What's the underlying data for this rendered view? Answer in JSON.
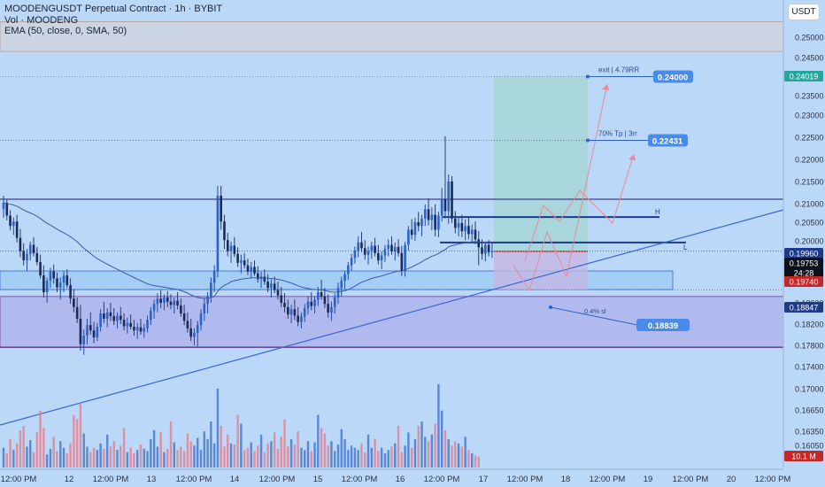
{
  "header": {
    "symbol_line": "MOODENGUSDT Perpetual Contract · 1h · BYBIT",
    "vol_line": "Vol · MOODENG",
    "ema_line": "EMA (50, close, 0, SMA, 50)"
  },
  "currency_button": "USDT",
  "chart_data": {
    "type": "candlestick",
    "x_tick_labels": [
      "12:00 PM",
      "12",
      "12:00 PM",
      "13",
      "12:00 PM",
      "14",
      "12:00 PM",
      "15",
      "12:00 PM",
      "16",
      "12:00 PM",
      "17",
      "12:00 PM",
      "18",
      "12:00 PM",
      "19",
      "12:00 PM",
      "20",
      "12:00 PM"
    ],
    "y_axis_ticks": [
      "0.25000",
      "0.24500",
      "0.23500",
      "0.23000",
      "0.22500",
      "0.22000",
      "0.21500",
      "0.21000",
      "0.20500",
      "0.20000",
      "0.19500",
      "0.19000",
      "0.18600",
      "0.18200",
      "0.17800",
      "0.17400",
      "0.17000",
      "0.16650",
      "0.16350",
      "0.16050"
    ],
    "price_badges": [
      {
        "label": "0.24019",
        "price": 0.24019,
        "color": "#26a69a"
      },
      {
        "label": "0.19960",
        "price": 0.1996,
        "color": "#1e3a8a"
      },
      {
        "label": "0.19753",
        "price": 0.19753,
        "color": "#0b0f19"
      },
      {
        "label": "24:28",
        "price": 0.19753,
        "color": "#0b0f19"
      },
      {
        "label": "0.19740",
        "price": 0.1974,
        "color": "#c62828"
      },
      {
        "label": "0.18847",
        "price": 0.18847,
        "color": "#1e3a8a"
      },
      {
        "label": "10.1 M",
        "price": 0.1605,
        "color": "#c62828"
      }
    ],
    "annotations": [
      {
        "text": "exit | 4.79RR",
        "value_label": "0.24000",
        "price": 0.24
      },
      {
        "text": "70% Tp | 3rr",
        "value_label": "0.22431",
        "price": 0.22431
      },
      {
        "text": "0.4% sl",
        "value_label": "0.18839",
        "price": 0.18839
      }
    ],
    "level_labels": {
      "high": "H",
      "low": "L"
    },
    "levels": {
      "resistance": 0.211,
      "high_line": 0.2064,
      "entry": 0.1996,
      "current": 0.19753,
      "lower_line": 0.1776
    },
    "zones": [
      {
        "name": "supply-zone",
        "from": 0.2465,
        "to": 0.2519
      },
      {
        "name": "demand-zone",
        "from": 0.1777,
        "to": 0.1872
      },
      {
        "name": "entry-box",
        "from": 0.1885,
        "to": 0.1926
      }
    ],
    "position": {
      "target": 0.24,
      "entry": 0.1974,
      "stop": 0.18847
    },
    "ohlc": [
      [
        0.2085,
        0.2118,
        0.2062,
        0.2102
      ],
      [
        0.2102,
        0.2109,
        0.2055,
        0.2068
      ],
      [
        0.2068,
        0.2082,
        0.2028,
        0.204
      ],
      [
        0.204,
        0.2063,
        0.2016,
        0.2052
      ],
      [
        0.2052,
        0.207,
        0.1996,
        0.2008
      ],
      [
        0.2008,
        0.2032,
        0.196,
        0.1975
      ],
      [
        0.1975,
        0.1994,
        0.194,
        0.1952
      ],
      [
        0.1952,
        0.198,
        0.1925,
        0.1968
      ],
      [
        0.1968,
        0.1998,
        0.1952,
        0.199
      ],
      [
        0.199,
        0.201,
        0.1962,
        0.197
      ],
      [
        0.197,
        0.1985,
        0.194,
        0.1948
      ],
      [
        0.1948,
        0.1966,
        0.1908,
        0.1915
      ],
      [
        0.1915,
        0.194,
        0.187,
        0.188
      ],
      [
        0.188,
        0.191,
        0.186,
        0.1902
      ],
      [
        0.1902,
        0.1934,
        0.1888,
        0.1925
      ],
      [
        0.1925,
        0.1942,
        0.1896,
        0.1908
      ],
      [
        0.1908,
        0.1922,
        0.188,
        0.1889
      ],
      [
        0.1889,
        0.191,
        0.1866,
        0.1898
      ],
      [
        0.1898,
        0.1925,
        0.188,
        0.1915
      ],
      [
        0.1915,
        0.193,
        0.1888,
        0.1893
      ],
      [
        0.1893,
        0.1908,
        0.1858,
        0.1868
      ],
      [
        0.1868,
        0.1885,
        0.1842,
        0.1852
      ],
      [
        0.1852,
        0.187,
        0.1822,
        0.183
      ],
      [
        0.183,
        0.1856,
        0.177,
        0.1782
      ],
      [
        0.1782,
        0.181,
        0.1762,
        0.1798
      ],
      [
        0.1798,
        0.183,
        0.1782,
        0.1818
      ],
      [
        0.1818,
        0.1842,
        0.18,
        0.1808
      ],
      [
        0.1808,
        0.1824,
        0.1784,
        0.1795
      ],
      [
        0.1795,
        0.1822,
        0.1788,
        0.1815
      ],
      [
        0.1815,
        0.1848,
        0.1806,
        0.184
      ],
      [
        0.184,
        0.1862,
        0.1822,
        0.183
      ],
      [
        0.183,
        0.185,
        0.1814,
        0.1842
      ],
      [
        0.1842,
        0.186,
        0.1826,
        0.1835
      ],
      [
        0.1835,
        0.185,
        0.1818,
        0.1826
      ],
      [
        0.1826,
        0.1842,
        0.1812,
        0.1836
      ],
      [
        0.1836,
        0.1852,
        0.182,
        0.1828
      ],
      [
        0.1828,
        0.184,
        0.1808,
        0.1816
      ],
      [
        0.1816,
        0.1832,
        0.1802,
        0.1822
      ],
      [
        0.1822,
        0.1838,
        0.181,
        0.1815
      ],
      [
        0.1815,
        0.1828,
        0.1798,
        0.1808
      ],
      [
        0.1808,
        0.1822,
        0.1792,
        0.1814
      ],
      [
        0.1814,
        0.183,
        0.18,
        0.1806
      ],
      [
        0.1806,
        0.182,
        0.1794,
        0.1812
      ],
      [
        0.1812,
        0.1836,
        0.1804,
        0.1828
      ],
      [
        0.1828,
        0.1852,
        0.1818,
        0.1845
      ],
      [
        0.1845,
        0.1866,
        0.183,
        0.1858
      ],
      [
        0.1858,
        0.1878,
        0.1842,
        0.1868
      ],
      [
        0.1868,
        0.1884,
        0.185,
        0.186
      ],
      [
        0.186,
        0.1876,
        0.1846,
        0.187
      ],
      [
        0.187,
        0.1882,
        0.1852,
        0.1862
      ],
      [
        0.1862,
        0.1876,
        0.1848,
        0.1856
      ],
      [
        0.1856,
        0.187,
        0.184,
        0.1864
      ],
      [
        0.1864,
        0.188,
        0.1848,
        0.1855
      ],
      [
        0.1855,
        0.1868,
        0.1834,
        0.184
      ],
      [
        0.184,
        0.1856,
        0.1818,
        0.1826
      ],
      [
        0.1826,
        0.1842,
        0.1804,
        0.1812
      ],
      [
        0.1812,
        0.183,
        0.1788,
        0.1796
      ],
      [
        0.1796,
        0.1812,
        0.178,
        0.1804
      ],
      [
        0.1804,
        0.1826,
        0.1778,
        0.1818
      ],
      [
        0.1818,
        0.1848,
        0.1808,
        0.184
      ],
      [
        0.184,
        0.1868,
        0.1826,
        0.1858
      ],
      [
        0.1858,
        0.188,
        0.184,
        0.1872
      ],
      [
        0.1872,
        0.191,
        0.186,
        0.1898
      ],
      [
        0.1898,
        0.194,
        0.188,
        0.1925
      ],
      [
        0.1925,
        0.214,
        0.191,
        0.2118
      ],
      [
        0.2118,
        0.214,
        0.203,
        0.2052
      ],
      [
        0.2052,
        0.207,
        0.198,
        0.2002
      ],
      [
        0.2002,
        0.2022,
        0.1962,
        0.1975
      ],
      [
        0.1975,
        0.1998,
        0.1946,
        0.1988
      ],
      [
        0.1988,
        0.201,
        0.196,
        0.1968
      ],
      [
        0.1968,
        0.1984,
        0.1936,
        0.1946
      ],
      [
        0.1946,
        0.1966,
        0.192,
        0.1952
      ],
      [
        0.1952,
        0.197,
        0.1932,
        0.194
      ],
      [
        0.194,
        0.1956,
        0.1916,
        0.1924
      ],
      [
        0.1924,
        0.1948,
        0.1908,
        0.1936
      ],
      [
        0.1936,
        0.1952,
        0.1914,
        0.192
      ],
      [
        0.192,
        0.1938,
        0.1898,
        0.1906
      ],
      [
        0.1906,
        0.1924,
        0.1888,
        0.1912
      ],
      [
        0.1912,
        0.193,
        0.1894,
        0.19
      ],
      [
        0.19,
        0.1918,
        0.188,
        0.1888
      ],
      [
        0.1888,
        0.1906,
        0.187,
        0.1896
      ],
      [
        0.1896,
        0.1912,
        0.1878,
        0.1884
      ],
      [
        0.1884,
        0.19,
        0.1866,
        0.1874
      ],
      [
        0.1874,
        0.189,
        0.1852,
        0.186
      ],
      [
        0.186,
        0.1878,
        0.1842,
        0.1852
      ],
      [
        0.1852,
        0.1866,
        0.183,
        0.1838
      ],
      [
        0.1838,
        0.1856,
        0.1822,
        0.1848
      ],
      [
        0.1848,
        0.1866,
        0.1828,
        0.1836
      ],
      [
        0.1836,
        0.1852,
        0.1816,
        0.1824
      ],
      [
        0.1824,
        0.1842,
        0.1812,
        0.1834
      ],
      [
        0.1834,
        0.1858,
        0.1824,
        0.185
      ],
      [
        0.185,
        0.1872,
        0.1838,
        0.1862
      ],
      [
        0.1862,
        0.188,
        0.1846,
        0.1854
      ],
      [
        0.1854,
        0.1872,
        0.184,
        0.1866
      ],
      [
        0.1866,
        0.189,
        0.1854,
        0.188
      ],
      [
        0.188,
        0.1904,
        0.1866,
        0.1872
      ],
      [
        0.1872,
        0.1888,
        0.185,
        0.1858
      ],
      [
        0.1858,
        0.1876,
        0.1832,
        0.1842
      ],
      [
        0.1842,
        0.1862,
        0.1826,
        0.1852
      ],
      [
        0.1852,
        0.1878,
        0.184,
        0.187
      ],
      [
        0.187,
        0.1898,
        0.1858,
        0.1888
      ],
      [
        0.1888,
        0.1912,
        0.1872,
        0.1902
      ],
      [
        0.1902,
        0.1926,
        0.1886,
        0.1918
      ],
      [
        0.1918,
        0.1948,
        0.1904,
        0.194
      ],
      [
        0.194,
        0.1968,
        0.1926,
        0.1958
      ],
      [
        0.1958,
        0.1986,
        0.1944,
        0.1976
      ],
      [
        0.1976,
        0.2012,
        0.196,
        0.1996
      ],
      [
        0.1996,
        0.2024,
        0.1972,
        0.1982
      ],
      [
        0.1982,
        0.2002,
        0.1954,
        0.1966
      ],
      [
        0.1966,
        0.1986,
        0.1942,
        0.1975
      ],
      [
        0.1975,
        0.1998,
        0.1956,
        0.1988
      ],
      [
        0.1988,
        0.2008,
        0.1962,
        0.197
      ],
      [
        0.197,
        0.199,
        0.1942,
        0.1952
      ],
      [
        0.1952,
        0.1974,
        0.193,
        0.1964
      ],
      [
        0.1964,
        0.199,
        0.1948,
        0.198
      ],
      [
        0.198,
        0.2004,
        0.1962,
        0.199
      ],
      [
        0.199,
        0.2012,
        0.1966,
        0.1974
      ],
      [
        0.1974,
        0.1996,
        0.1952,
        0.1985
      ],
      [
        0.1985,
        0.2004,
        0.1962,
        0.197
      ],
      [
        0.197,
        0.1988,
        0.1914,
        0.1925
      ],
      [
        0.1925,
        0.1998,
        0.1912,
        0.199
      ],
      [
        0.199,
        0.204,
        0.1976,
        0.203
      ],
      [
        0.203,
        0.2058,
        0.2004,
        0.2016
      ],
      [
        0.2016,
        0.2062,
        0.2,
        0.205
      ],
      [
        0.205,
        0.2078,
        0.2026,
        0.204
      ],
      [
        0.204,
        0.207,
        0.2012,
        0.206
      ],
      [
        0.206,
        0.2098,
        0.204,
        0.2085
      ],
      [
        0.2085,
        0.2112,
        0.2042,
        0.2056
      ],
      [
        0.2056,
        0.209,
        0.2028,
        0.207
      ],
      [
        0.207,
        0.2098,
        0.2012,
        0.203
      ],
      [
        0.203,
        0.2078,
        0.201,
        0.2068
      ],
      [
        0.2068,
        0.2135,
        0.2052,
        0.211
      ],
      [
        0.211,
        0.2252,
        0.206,
        0.208
      ],
      [
        0.208,
        0.2166,
        0.2046,
        0.215
      ],
      [
        0.215,
        0.2162,
        0.2048,
        0.206
      ],
      [
        0.206,
        0.208,
        0.202,
        0.2035
      ],
      [
        0.2035,
        0.2066,
        0.2012,
        0.2048
      ],
      [
        0.2048,
        0.207,
        0.201,
        0.2026
      ],
      [
        0.2026,
        0.2058,
        0.2002,
        0.204
      ],
      [
        0.204,
        0.2062,
        0.2004,
        0.2018
      ],
      [
        0.2018,
        0.2044,
        0.1996,
        0.203
      ],
      [
        0.203,
        0.2052,
        0.1992,
        0.2004
      ],
      [
        0.2004,
        0.2026,
        0.194,
        0.1984
      ],
      [
        0.1984,
        0.2004,
        0.1954,
        0.1968
      ],
      [
        0.1968,
        0.1998,
        0.195,
        0.199
      ],
      [
        0.199,
        0.2002,
        0.1962,
        0.1972
      ],
      [
        0.1972,
        0.1996,
        0.1958,
        0.1975
      ]
    ],
    "volume": [
      1.8,
      1.3,
      2.6,
      1.6,
      2.2,
      3.4,
      3.8,
      1.9,
      2.5,
      1.4,
      3.2,
      5.2,
      3.6,
      1.2,
      1.7,
      2.8,
      1.5,
      2.4,
      1.8,
      1.3,
      2.2,
      4.8,
      4.4,
      5.8,
      3.1,
      1.9,
      1.4,
      1.8,
      1.6,
      2.2,
      1.7,
      3.0,
      1.9,
      2.4,
      1.6,
      2.0,
      3.6,
      1.4,
      1.8,
      1.3,
      1.6,
      2.1,
      1.7,
      1.5,
      2.6,
      3.4,
      1.9,
      3.2,
      1.4,
      1.7,
      4.2,
      2.3,
      1.6,
      1.9,
      1.5,
      3.1,
      2.4,
      2.0,
      2.7,
      1.6,
      3.3,
      2.6,
      4.2,
      2.2,
      7.2,
      3.8,
      1.9,
      3.0,
      2.2,
      2.1,
      4.8,
      4.0,
      1.6,
      1.8,
      2.3,
      1.5,
      2.0,
      3.0,
      1.4,
      2.2,
      2.4,
      3.2,
      1.7,
      2.8,
      4.4,
      1.9,
      2.6,
      2.1,
      3.3,
      1.8,
      1.6,
      2.4,
      1.5,
      2.3,
      4.8,
      3.6,
      3.1,
      2.0,
      2.4,
      1.5,
      2.1,
      3.5,
      2.6,
      1.6,
      2.0,
      1.8,
      1.6,
      2.2,
      1.4,
      3.0,
      1.8,
      2.6,
      1.5,
      1.8,
      1.3,
      1.6,
      1.9,
      2.2,
      3.8,
      1.4,
      2.0,
      3.2,
      1.8,
      2.6,
      3.8,
      4.2,
      2.8,
      2.4,
      3.0,
      4.0,
      7.6,
      5.2,
      3.4,
      2.6,
      2.0,
      2.4,
      2.2,
      1.9,
      2.8,
      1.6,
      1.3,
      1.1,
      1.0
    ],
    "volume_max_label": "10.1 M",
    "ema_period": 50
  }
}
